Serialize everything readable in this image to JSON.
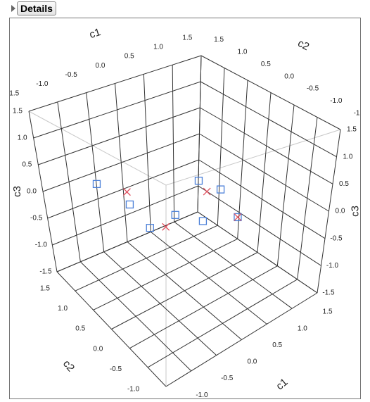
{
  "details_button": "Details",
  "chart_data": {
    "type": "scatter3d",
    "x_label": "c1",
    "y_label": "c2",
    "z_label": "c3",
    "xlim": [
      -1.5,
      1.5
    ],
    "ylim": [
      -1.5,
      1.5
    ],
    "zlim": [
      -1.5,
      1.5
    ],
    "xticks": [
      1.5,
      {
        "value": 1,
        "label": "1.0"
      },
      0.5,
      {
        "value": 0,
        "label": "0.0"
      },
      -0.5,
      {
        "value": -1,
        "label": "-1.0"
      },
      -1.5
    ],
    "yticks": [
      1.5,
      {
        "value": 1,
        "label": "1.0"
      },
      0.5,
      {
        "value": 0,
        "label": "0.0"
      },
      -0.5,
      {
        "value": -1,
        "label": "-1.0"
      },
      -1.5
    ],
    "zticks": [
      1.5,
      {
        "value": 1,
        "label": "1.0"
      },
      0.5,
      {
        "value": 0,
        "label": "0.0"
      },
      -0.5,
      {
        "value": -1,
        "label": "-1.0"
      },
      -1.5
    ],
    "grid": true,
    "points": {
      "c1": [
        -0.6,
        -0.45,
        -0.45,
        -0.5,
        -0.2,
        0.3,
        1.0,
        1.0,
        1.1,
        1.1,
        1.3,
        1.3
      ],
      "c2": [
        1.35,
        0.75,
        0.8,
        0.2,
        0.2,
        0.6,
        0.9,
        0.7,
        0.5,
        0.9,
        0.3,
        0.3
      ],
      "c3": [
        -0.1,
        -0.2,
        0.0,
        -0.3,
        -0.4,
        -0.6,
        -0.4,
        -0.5,
        -0.4,
        -1.2,
        -0.9,
        -0.9
      ],
      "marker": [
        "square",
        "square",
        "x",
        "square",
        "x",
        "square",
        "square",
        "x",
        "square",
        "square",
        "square",
        "x"
      ],
      "color": [
        "#4a7fd8",
        "#4a7fd8",
        "#e0505e",
        "#4a7fd8",
        "#e0505e",
        "#4a7fd8",
        "#4a7fd8",
        "#e0505e",
        "#4a7fd8",
        "#4a7fd8",
        "#4a7fd8",
        "#e0505e"
      ]
    }
  }
}
